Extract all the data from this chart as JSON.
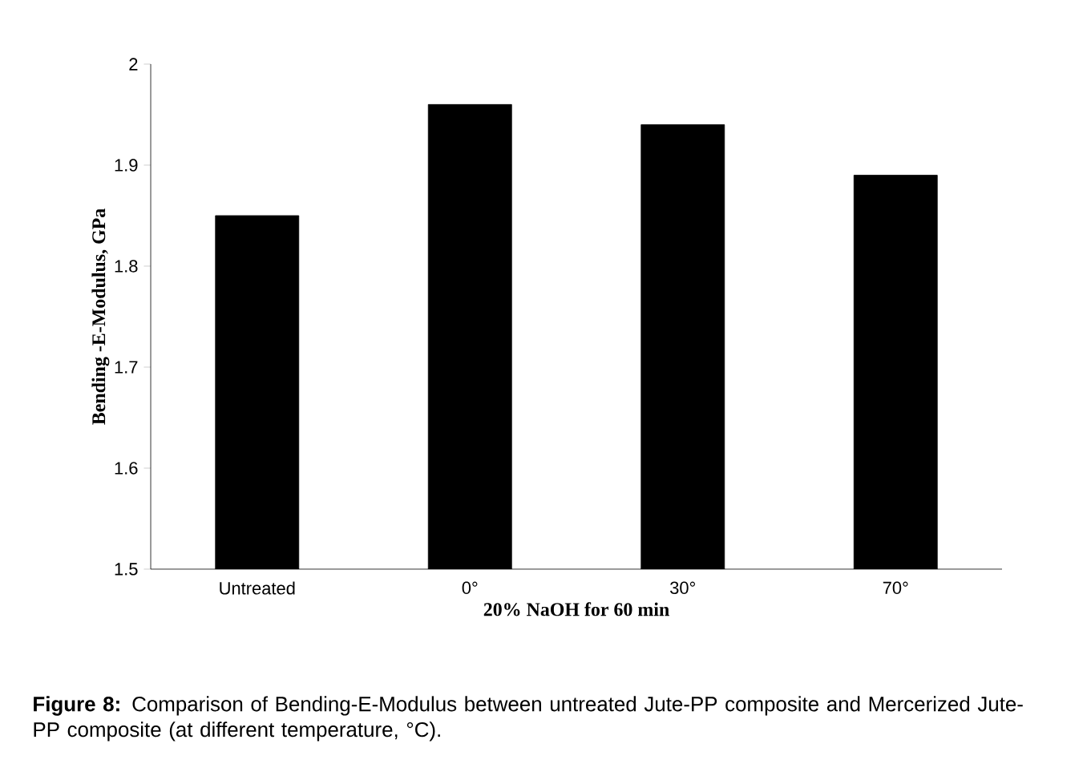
{
  "chart_data": {
    "type": "bar",
    "categories": [
      "Untreated",
      "0°",
      "30°",
      "70°"
    ],
    "values": [
      1.85,
      1.96,
      1.94,
      1.89
    ],
    "color": "#000000",
    "xlabel": "20% NaOH for  60 min",
    "ylabel": "Bending -E-Modulus, GPa",
    "ylim": [
      1.5,
      2
    ],
    "yticks": [
      1.5,
      1.6,
      1.7,
      1.8,
      1.9,
      2
    ],
    "annotations": [
      "**Figure 8:** Comparison of Bending-E-Modulus between untreated Jute-PP composite and Mercerized Jute-PP composite (at different temperature, °C)."
    ]
  }
}
